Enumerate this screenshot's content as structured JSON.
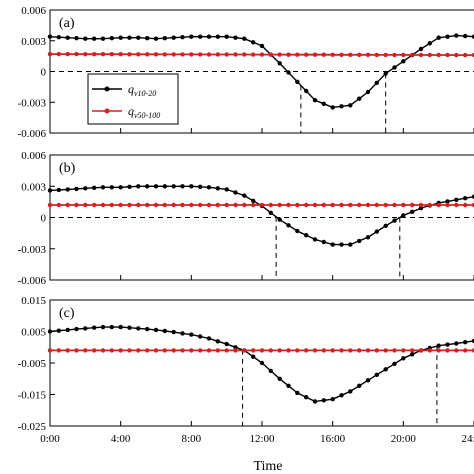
{
  "chart_data": [
    {
      "type": "line",
      "panel_label": "(a)",
      "ylim": [
        -0.006,
        0.006
      ],
      "yticks": [
        {
          "value": -0.006,
          "label": "-0.006"
        },
        {
          "value": -0.003,
          "label": "-0.003"
        },
        {
          "value": 0,
          "label": "0"
        },
        {
          "value": 0.003,
          "label": "0.003"
        },
        {
          "value": 0.006,
          "label": "0.006"
        }
      ],
      "zero_line": 0,
      "vlines": [
        14.2,
        19.0
      ],
      "series": [
        {
          "name": "q_v10-20",
          "x": [
            0,
            1,
            2,
            3,
            4,
            5,
            6,
            7,
            8,
            9,
            10,
            11,
            12,
            13,
            14,
            15,
            16,
            17,
            18,
            19,
            20,
            21,
            22,
            23,
            24
          ],
          "values": [
            0.0034,
            0.0033,
            0.0032,
            0.0032,
            0.0033,
            0.0033,
            0.0032,
            0.0033,
            0.0034,
            0.0034,
            0.0034,
            0.0032,
            0.0025,
            0.0008,
            -0.001,
            -0.0028,
            -0.0035,
            -0.0033,
            -0.002,
            -0.0002,
            0.001,
            0.0022,
            0.0033,
            0.0035,
            0.0034
          ]
        },
        {
          "name": "q_v50-100",
          "x": [
            0,
            24
          ],
          "values": [
            0.0017,
            0.0016
          ]
        }
      ],
      "legend": {
        "show": true,
        "placement": "left",
        "entries": [
          {
            "symbol": "q",
            "subscript": "v10-20",
            "color": "#000000"
          },
          {
            "symbol": "q",
            "subscript": "v50-100",
            "color": "#d42020"
          }
        ]
      }
    },
    {
      "type": "line",
      "panel_label": "(b)",
      "ylim": [
        -0.006,
        0.006
      ],
      "yticks": [
        {
          "value": -0.006,
          "label": "-0.006"
        },
        {
          "value": -0.003,
          "label": "-0.003"
        },
        {
          "value": 0,
          "label": "0"
        },
        {
          "value": 0.003,
          "label": "0.003"
        },
        {
          "value": 0.006,
          "label": "0.006"
        }
      ],
      "zero_line": 0,
      "vlines": [
        12.8,
        19.8
      ],
      "series": [
        {
          "name": "q_v10-20",
          "x": [
            0,
            1,
            2,
            3,
            4,
            5,
            6,
            7,
            8,
            9,
            10,
            11,
            12,
            13,
            14,
            15,
            16,
            17,
            18,
            19,
            20,
            21,
            22,
            23,
            24
          ],
          "values": [
            0.0026,
            0.0027,
            0.0028,
            0.0029,
            0.0029,
            0.003,
            0.003,
            0.003,
            0.003,
            0.0029,
            0.0027,
            0.0021,
            0.0011,
            -0.0002,
            -0.0013,
            -0.0021,
            -0.0026,
            -0.0026,
            -0.0019,
            -0.0008,
            0.0002,
            0.0009,
            0.0014,
            0.0017,
            0.002
          ]
        },
        {
          "name": "q_v50-100",
          "x": [
            0,
            24
          ],
          "values": [
            0.0012,
            0.0012
          ]
        }
      ]
    },
    {
      "type": "line",
      "panel_label": "(c)",
      "ylim": [
        -0.025,
        0.015
      ],
      "yticks": [
        {
          "value": -0.025,
          "label": "-0.025"
        },
        {
          "value": -0.015,
          "label": "-0.015"
        },
        {
          "value": -0.005,
          "label": "-0.005"
        },
        {
          "value": 0.005,
          "label": "0.005"
        },
        {
          "value": 0.015,
          "label": "0.015"
        }
      ],
      "zero_line": null,
      "vlines": [
        10.9,
        21.9
      ],
      "series": [
        {
          "name": "q_v10-20",
          "x": [
            0,
            1,
            2,
            3,
            4,
            5,
            6,
            7,
            8,
            9,
            10,
            11,
            12,
            13,
            14,
            15,
            16,
            17,
            18,
            19,
            20,
            21,
            22,
            23,
            24
          ],
          "values": [
            0.005,
            0.0055,
            0.006,
            0.0064,
            0.0064,
            0.006,
            0.0055,
            0.0048,
            0.004,
            0.0028,
            0.001,
            -0.001,
            -0.005,
            -0.01,
            -0.0145,
            -0.0172,
            -0.0165,
            -0.014,
            -0.0105,
            -0.007,
            -0.0035,
            -0.001,
            0.0005,
            0.0012,
            0.002
          ]
        },
        {
          "name": "q_v50-100",
          "x": [
            0,
            24
          ],
          "values": [
            -0.001,
            -0.001
          ]
        }
      ]
    }
  ],
  "x_axis": {
    "label": "Time",
    "range": [
      0,
      24
    ],
    "ticks": [
      {
        "value": 0,
        "label": "0:00"
      },
      {
        "value": 4,
        "label": "4:00"
      },
      {
        "value": 8,
        "label": "8:00"
      },
      {
        "value": 12,
        "label": "12:00"
      },
      {
        "value": 16,
        "label": "16:00"
      },
      {
        "value": 20,
        "label": "20:00"
      },
      {
        "value": 24,
        "label": "24:00"
      }
    ]
  },
  "colors": {
    "series_1": "#000000",
    "series_2": "#d42020",
    "axes": "#000000"
  }
}
